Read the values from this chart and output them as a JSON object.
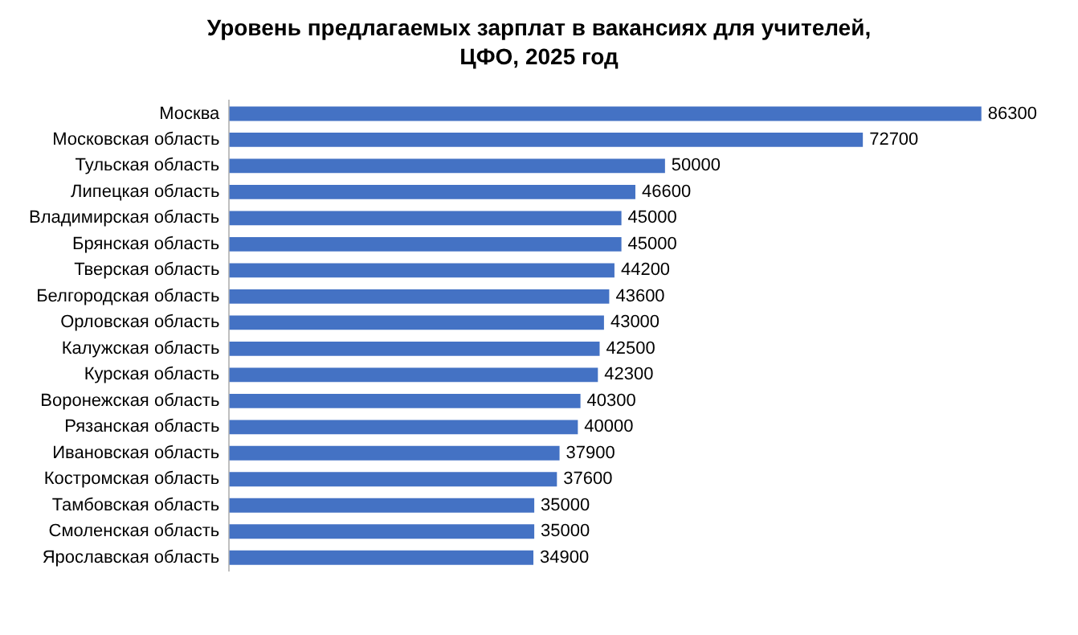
{
  "chart_data": {
    "type": "bar",
    "orientation": "horizontal",
    "title": "Уровень предлагаемых зарплат в вакансиях для учителей, ЦФО, 2025 год",
    "categories": [
      "Москва",
      "Московская область",
      "Тульская область",
      "Липецкая область",
      "Владимирская область",
      "Брянская область",
      "Тверская область",
      "Белгородская область",
      "Орловская область",
      "Калужская область",
      "Курская область",
      "Воронежская область",
      "Рязанская область",
      "Ивановская область",
      "Костромская область",
      "Тамбовская область",
      "Смоленская область",
      "Ярославская область"
    ],
    "values": [
      86300,
      72700,
      50000,
      46600,
      45000,
      45000,
      44200,
      43600,
      43000,
      42500,
      42300,
      40300,
      40000,
      37900,
      37600,
      35000,
      35000,
      34900
    ],
    "color": "#4472c4",
    "data_labels": true,
    "legend": false,
    "tick_labels": "y"
  }
}
